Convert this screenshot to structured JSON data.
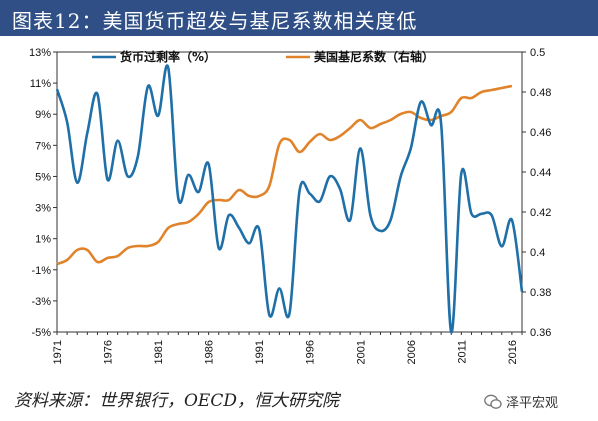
{
  "title": "图表12：美国货币超发与基尼系数相关度低",
  "source": "资料来源：世界银行，OECD，恒大研究院",
  "watermark": "泽平宏观",
  "colors": {
    "title_band": "#2f4f86",
    "series1": "#1f6fa8",
    "series2": "#e0832a"
  },
  "chart_data": {
    "type": "line",
    "x_ticks": [
      "1971",
      "1976",
      "1981",
      "1986",
      "1991",
      "1996",
      "2001",
      "2006",
      "2011",
      "2016"
    ],
    "xlim": [
      1971,
      2017
    ],
    "y_left": {
      "ylim": [
        -5,
        13
      ],
      "ticks": [
        "13%",
        "11%",
        "9%",
        "7%",
        "5%",
        "3%",
        "1%",
        "-1%",
        "-3%",
        "-5%"
      ],
      "tick_values": [
        13,
        11,
        9,
        7,
        5,
        3,
        1,
        -1,
        -3,
        -5
      ]
    },
    "y_right": {
      "ylim": [
        0.36,
        0.5
      ],
      "ticks": [
        "0.5",
        "0.48",
        "0.46",
        "0.44",
        "0.42",
        "0.4",
        "0.38",
        "0.36"
      ],
      "tick_values": [
        0.5,
        0.48,
        0.46,
        0.44,
        0.42,
        0.4,
        0.38,
        0.36
      ]
    },
    "series": [
      {
        "name": "货币过剩率（%）",
        "axis": "left",
        "x": [
          1971,
          1972,
          1973,
          1974,
          1975,
          1976,
          1977,
          1978,
          1979,
          1980,
          1981,
          1982,
          1983,
          1984,
          1985,
          1986,
          1987,
          1988,
          1989,
          1990,
          1991,
          1992,
          1993,
          1994,
          1995,
          1996,
          1997,
          1998,
          1999,
          2000,
          2001,
          2002,
          2003,
          2004,
          2005,
          2006,
          2007,
          2008,
          2009,
          2010,
          2011,
          2012,
          2013,
          2014,
          2015,
          2016,
          2017
        ],
        "values": [
          10.6,
          8.5,
          4.6,
          7.8,
          10.3,
          4.8,
          7.3,
          5.0,
          6.3,
          10.8,
          8.9,
          12.0,
          3.6,
          5.1,
          4.0,
          5.8,
          0.4,
          2.5,
          1.7,
          0.7,
          1.6,
          -3.9,
          -2.2,
          -3.8,
          4.1,
          3.9,
          3.4,
          5.0,
          4.2,
          2.2,
          6.8,
          2.5,
          1.5,
          2.2,
          5.0,
          6.8,
          9.8,
          8.3,
          8.4,
          -5.0,
          5.2,
          2.6,
          2.6,
          2.5,
          0.5,
          2.2,
          -2.4
        ]
      },
      {
        "name": "美国基尼系数（右轴）",
        "axis": "right",
        "x": [
          1971,
          1972,
          1973,
          1974,
          1975,
          1976,
          1977,
          1978,
          1979,
          1980,
          1981,
          1982,
          1983,
          1984,
          1985,
          1986,
          1987,
          1988,
          1989,
          1990,
          1991,
          1992,
          1993,
          1994,
          1995,
          1996,
          1997,
          1998,
          1999,
          2000,
          2001,
          2002,
          2003,
          2004,
          2005,
          2006,
          2007,
          2008,
          2009,
          2010,
          2011,
          2012,
          2013,
          2014,
          2015,
          2016
        ],
        "values": [
          0.394,
          0.396,
          0.401,
          0.401,
          0.395,
          0.397,
          0.398,
          0.402,
          0.403,
          0.403,
          0.405,
          0.412,
          0.414,
          0.415,
          0.419,
          0.425,
          0.426,
          0.426,
          0.431,
          0.428,
          0.428,
          0.433,
          0.454,
          0.456,
          0.45,
          0.455,
          0.459,
          0.456,
          0.458,
          0.462,
          0.466,
          0.462,
          0.464,
          0.466,
          0.469,
          0.47,
          0.467,
          0.466,
          0.468,
          0.47,
          0.477,
          0.477,
          0.48,
          0.481,
          0.482,
          0.483
        ]
      }
    ],
    "legend_position": "top"
  }
}
